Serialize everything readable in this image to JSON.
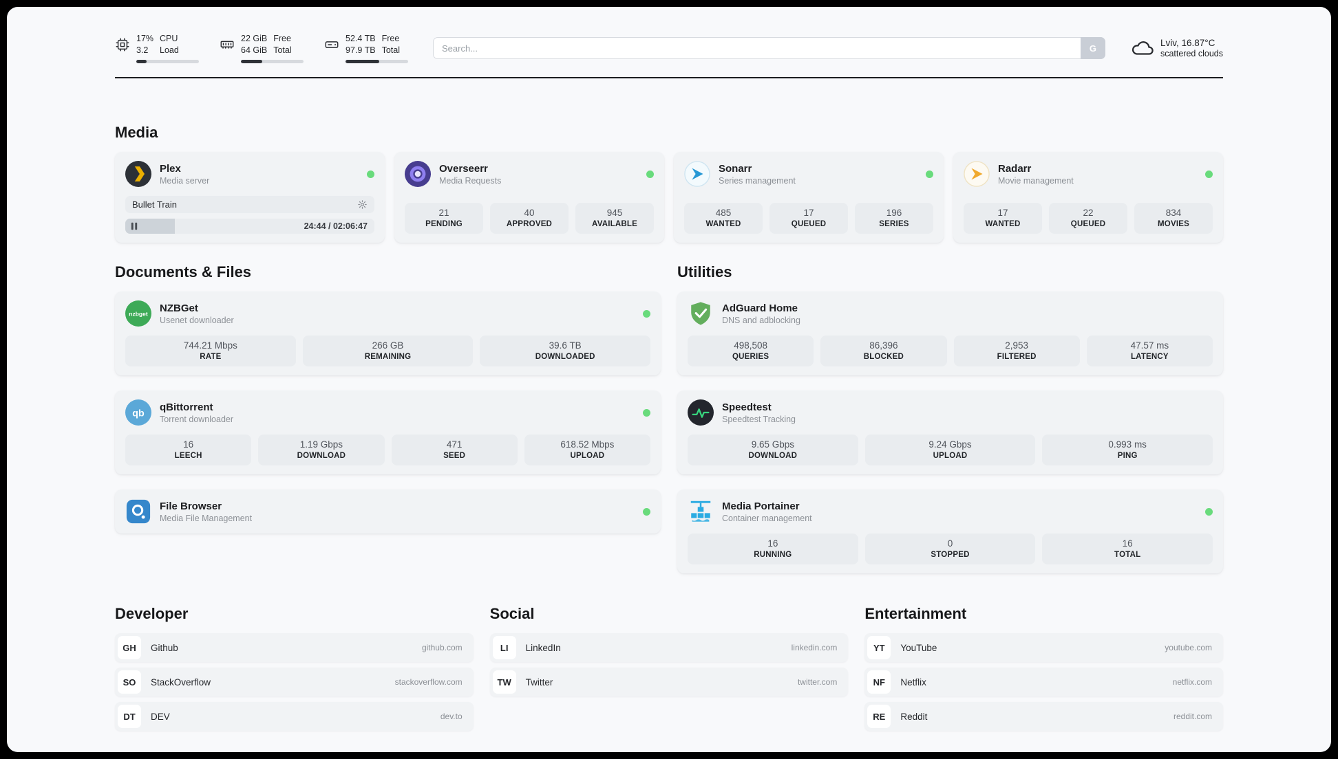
{
  "colors": {
    "page-bg": "#f8f9fb",
    "card-bg": "#f1f3f5",
    "tile-bg": "#e9ecef",
    "text-primary": "#1d1e21",
    "text-secondary": "#8c9096",
    "status-online": "#69db7c",
    "search-btn-bg": "#c9ced6",
    "bar-fill": "#2f3237",
    "bar-track": "#d7dade"
  },
  "topbar": {
    "cpu": {
      "value_top": "17%",
      "value_bottom": "3.2",
      "label_top": "CPU",
      "label_bottom": "Load",
      "bar_percent": 17
    },
    "ram": {
      "value_top": "22 GiB",
      "value_bottom": "64 GiB",
      "label_top": "Free",
      "label_bottom": "Total",
      "bar_percent": 34
    },
    "disk": {
      "value_top": "52.4 TB",
      "value_bottom": "97.9 TB",
      "label_top": "Free",
      "label_bottom": "Total",
      "bar_percent": 54
    },
    "search": {
      "placeholder": "Search...",
      "engine_button": "G"
    },
    "weather": {
      "location": "Lviv, 16.87°C",
      "condition": "scattered clouds"
    }
  },
  "sections": {
    "media": {
      "title": "Media",
      "apps": [
        {
          "name": "Plex",
          "subtitle": "Media server",
          "online": true,
          "now_playing": {
            "title": "Bullet Train",
            "time": "24:44 / 02:06:47",
            "progress_percent": 20
          }
        },
        {
          "name": "Overseerr",
          "subtitle": "Media Requests",
          "online": true,
          "stats": [
            {
              "value": "21",
              "label": "PENDING"
            },
            {
              "value": "40",
              "label": "APPROVED"
            },
            {
              "value": "945",
              "label": "AVAILABLE"
            }
          ]
        },
        {
          "name": "Sonarr",
          "subtitle": "Series management",
          "online": true,
          "stats": [
            {
              "value": "485",
              "label": "WANTED"
            },
            {
              "value": "17",
              "label": "QUEUED"
            },
            {
              "value": "196",
              "label": "SERIES"
            }
          ]
        },
        {
          "name": "Radarr",
          "subtitle": "Movie management",
          "online": true,
          "stats": [
            {
              "value": "17",
              "label": "WANTED"
            },
            {
              "value": "22",
              "label": "QUEUED"
            },
            {
              "value": "834",
              "label": "MOVIES"
            }
          ]
        }
      ]
    },
    "documents": {
      "title": "Documents & Files",
      "apps": [
        {
          "name": "NZBGet",
          "subtitle": "Usenet downloader",
          "online": true,
          "stats": [
            {
              "value": "744.21 Mbps",
              "label": "RATE"
            },
            {
              "value": "266 GB",
              "label": "REMAINING"
            },
            {
              "value": "39.6 TB",
              "label": "DOWNLOADED"
            }
          ]
        },
        {
          "name": "qBittorrent",
          "subtitle": "Torrent downloader",
          "online": true,
          "stats": [
            {
              "value": "16",
              "label": "LEECH"
            },
            {
              "value": "1.19 Gbps",
              "label": "DOWNLOAD"
            },
            {
              "value": "471",
              "label": "SEED"
            },
            {
              "value": "618.52 Mbps",
              "label": "UPLOAD"
            }
          ]
        },
        {
          "name": "File Browser",
          "subtitle": "Media File Management",
          "online": true,
          "stats": []
        }
      ]
    },
    "utilities": {
      "title": "Utilities",
      "apps": [
        {
          "name": "AdGuard Home",
          "subtitle": "DNS and adblocking",
          "online": false,
          "stats": [
            {
              "value": "498,508",
              "label": "QUERIES"
            },
            {
              "value": "86,396",
              "label": "BLOCKED"
            },
            {
              "value": "2,953",
              "label": "FILTERED"
            },
            {
              "value": "47.57 ms",
              "label": "LATENCY"
            }
          ]
        },
        {
          "name": "Speedtest",
          "subtitle": "Speedtest Tracking",
          "online": false,
          "stats": [
            {
              "value": "9.65 Gbps",
              "label": "DOWNLOAD"
            },
            {
              "value": "9.24 Gbps",
              "label": "UPLOAD"
            },
            {
              "value": "0.993 ms",
              "label": "PING"
            }
          ]
        },
        {
          "name": "Media Portainer",
          "subtitle": "Container management",
          "online": true,
          "stats": [
            {
              "value": "16",
              "label": "RUNNING"
            },
            {
              "value": "0",
              "label": "STOPPED"
            },
            {
              "value": "16",
              "label": "TOTAL"
            }
          ]
        }
      ]
    },
    "bookmarks": [
      {
        "title": "Developer",
        "items": [
          {
            "abbr": "GH",
            "name": "Github",
            "url": "github.com"
          },
          {
            "abbr": "SO",
            "name": "StackOverflow",
            "url": "stackoverflow.com"
          },
          {
            "abbr": "DT",
            "name": "DEV",
            "url": "dev.to"
          }
        ]
      },
      {
        "title": "Social",
        "items": [
          {
            "abbr": "LI",
            "name": "LinkedIn",
            "url": "linkedin.com"
          },
          {
            "abbr": "TW",
            "name": "Twitter",
            "url": "twitter.com"
          }
        ]
      },
      {
        "title": "Entertainment",
        "items": [
          {
            "abbr": "YT",
            "name": "YouTube",
            "url": "youtube.com"
          },
          {
            "abbr": "NF",
            "name": "Netflix",
            "url": "netflix.com"
          },
          {
            "abbr": "RE",
            "name": "Reddit",
            "url": "reddit.com"
          }
        ]
      }
    ]
  }
}
